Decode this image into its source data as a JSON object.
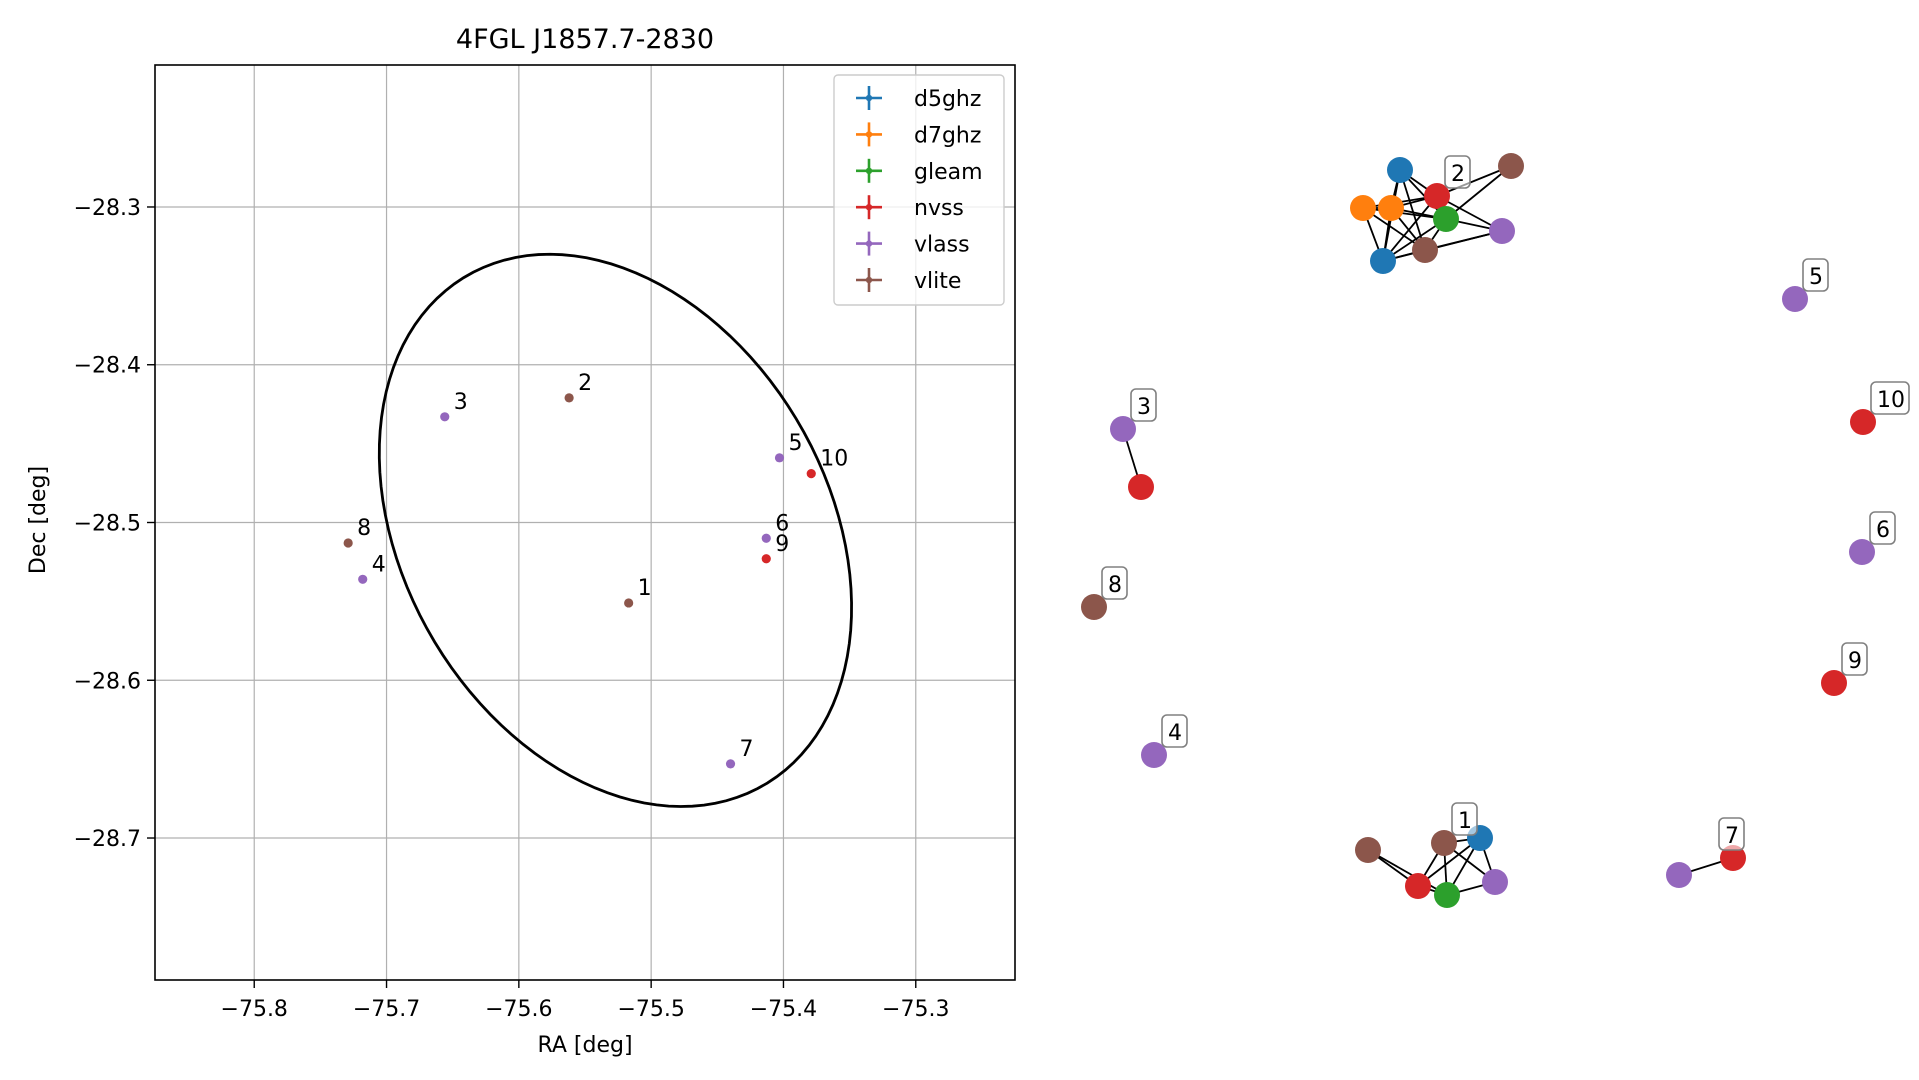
{
  "chart_data": [
    {
      "type": "scatter",
      "title": "4FGL J1857.7-2830",
      "xlabel": "RA [deg]",
      "ylabel": "Dec [deg]",
      "xlim": [
        -75.875,
        -75.225
      ],
      "ylim": [
        -28.79,
        -28.21
      ],
      "xticks": [
        -75.8,
        -75.7,
        -75.6,
        -75.5,
        -75.4,
        -75.3
      ],
      "xtick_labels": [
        "−75.8",
        "−75.7",
        "−75.6",
        "−75.5",
        "−75.4",
        "−75.3"
      ],
      "yticks": [
        -28.3,
        -28.4,
        -28.5,
        -28.6,
        -28.7
      ],
      "ytick_labels": [
        "−28.3",
        "−28.4",
        "−28.5",
        "−28.6",
        "−28.7"
      ],
      "grid": true,
      "legend_position": "top-right",
      "series": [
        {
          "name": "d5ghz",
          "color": "#1f77b4"
        },
        {
          "name": "d7ghz",
          "color": "#ff7f0e"
        },
        {
          "name": "gleam",
          "color": "#2ca02c"
        },
        {
          "name": "nvss",
          "color": "#d62728"
        },
        {
          "name": "vlass",
          "color": "#9467bd"
        },
        {
          "name": "vlite",
          "color": "#8c564b"
        }
      ],
      "points": [
        {
          "label": "1",
          "ra": -75.517,
          "dec": -28.551,
          "color": "#8c564b"
        },
        {
          "label": "2",
          "ra": -75.562,
          "dec": -28.421,
          "color": "#8c564b"
        },
        {
          "label": "3",
          "ra": -75.656,
          "dec": -28.433,
          "color": "#9467bd"
        },
        {
          "label": "4",
          "ra": -75.718,
          "dec": -28.536,
          "color": "#9467bd"
        },
        {
          "label": "5",
          "ra": -75.403,
          "dec": -28.459,
          "color": "#9467bd"
        },
        {
          "label": "6",
          "ra": -75.413,
          "dec": -28.51,
          "color": "#9467bd"
        },
        {
          "label": "7",
          "ra": -75.44,
          "dec": -28.653,
          "color": "#9467bd"
        },
        {
          "label": "8",
          "ra": -75.729,
          "dec": -28.513,
          "color": "#8c564b"
        },
        {
          "label": "9",
          "ra": -75.413,
          "dec": -28.523,
          "color": "#d62728"
        },
        {
          "label": "10",
          "ra": -75.379,
          "dec": -28.469,
          "color": "#d62728"
        }
      ],
      "ellipse": {
        "center_ra": -75.527,
        "center_dec": -28.505,
        "a": 0.2,
        "b": 0.15,
        "angle_deg": -43
      }
    },
    {
      "type": "network",
      "nodes": [
        {
          "id": "g2_d5a",
          "color": "#1f77b4"
        },
        {
          "id": "g2_d7a",
          "color": "#ff7f0e"
        },
        {
          "id": "g2_d7b",
          "color": "#ff7f0e"
        },
        {
          "id": "g2_nvss",
          "color": "#d62728"
        },
        {
          "id": "g2_gleam",
          "color": "#2ca02c"
        },
        {
          "id": "g2_vlass",
          "color": "#9467bd"
        },
        {
          "id": "g2_vlite_a",
          "color": "#8c564b"
        },
        {
          "id": "g2_vlite_b",
          "color": "#8c564b"
        },
        {
          "id": "g2_d5b",
          "color": "#1f77b4"
        },
        {
          "id": "n5",
          "color": "#9467bd",
          "label": "5"
        },
        {
          "id": "n10",
          "color": "#d62728",
          "label": "10"
        },
        {
          "id": "n3v",
          "color": "#9467bd",
          "label": "3"
        },
        {
          "id": "n3n",
          "color": "#d62728"
        },
        {
          "id": "n6",
          "color": "#9467bd",
          "label": "6"
        },
        {
          "id": "n8",
          "color": "#8c564b",
          "label": "8"
        },
        {
          "id": "n9",
          "color": "#d62728",
          "label": "9"
        },
        {
          "id": "n4",
          "color": "#9467bd",
          "label": "4"
        },
        {
          "id": "g1_d5",
          "color": "#1f77b4"
        },
        {
          "id": "g1_vlite_a",
          "color": "#8c564b"
        },
        {
          "id": "g1_vlite_b",
          "color": "#8c564b"
        },
        {
          "id": "g1_nvss",
          "color": "#d62728"
        },
        {
          "id": "g1_gleam",
          "color": "#2ca02c"
        },
        {
          "id": "g1_vlass",
          "color": "#9467bd"
        },
        {
          "id": "n7v",
          "color": "#9467bd"
        },
        {
          "id": "n7n",
          "color": "#d62728"
        }
      ],
      "node_labels": [
        {
          "text": "2",
          "node": "g2_nvss"
        },
        {
          "text": "1",
          "node": "g1_vlite_b"
        },
        {
          "text": "7",
          "node": "n7n"
        }
      ],
      "edges": [
        [
          "g2_d5a",
          "g2_d7b"
        ],
        [
          "g2_d5a",
          "g2_nvss"
        ],
        [
          "g2_d5a",
          "g2_gleam"
        ],
        [
          "g2_d5a",
          "g2_vlite_b"
        ],
        [
          "g2_d5a",
          "g2_d5b"
        ],
        [
          "g2_d7a",
          "g2_d7b"
        ],
        [
          "g2_d7a",
          "g2_nvss"
        ],
        [
          "g2_d7a",
          "g2_gleam"
        ],
        [
          "g2_d7a",
          "g2_d5b"
        ],
        [
          "g2_d7a",
          "g2_vlite_b"
        ],
        [
          "g2_d7b",
          "g2_nvss"
        ],
        [
          "g2_d7b",
          "g2_gleam"
        ],
        [
          "g2_d7b",
          "g2_d5b"
        ],
        [
          "g2_d7b",
          "g2_vlite_b"
        ],
        [
          "g2_nvss",
          "g2_gleam"
        ],
        [
          "g2_nvss",
          "g2_vlite_a"
        ],
        [
          "g2_nvss",
          "g2_vlass"
        ],
        [
          "g2_nvss",
          "g2_d5b"
        ],
        [
          "g2_gleam",
          "g2_vlite_a"
        ],
        [
          "g2_gleam",
          "g2_vlass"
        ],
        [
          "g2_gleam",
          "g2_d5b"
        ],
        [
          "g2_gleam",
          "g2_vlite_b"
        ],
        [
          "g2_vlite_b",
          "g2_vlass"
        ],
        [
          "g2_vlite_b",
          "g2_d5b"
        ],
        [
          "g2_vlass",
          "g2_d5b"
        ],
        [
          "n3v",
          "n3n"
        ],
        [
          "g1_vlite_a",
          "g1_nvss"
        ],
        [
          "g1_vlite_a",
          "g1_gleam"
        ],
        [
          "g1_nvss",
          "g1_vlite_b"
        ],
        [
          "g1_nvss",
          "g1_gleam"
        ],
        [
          "g1_nvss",
          "g1_d5"
        ],
        [
          "g1_gleam",
          "g1_vlite_b"
        ],
        [
          "g1_gleam",
          "g1_d5"
        ],
        [
          "g1_gleam",
          "g1_vlass"
        ],
        [
          "g1_vlite_b",
          "g1_d5"
        ],
        [
          "g1_vlite_b",
          "g1_vlass"
        ],
        [
          "g1_d5",
          "g1_vlass"
        ],
        [
          "n7v",
          "n7n"
        ]
      ]
    }
  ]
}
